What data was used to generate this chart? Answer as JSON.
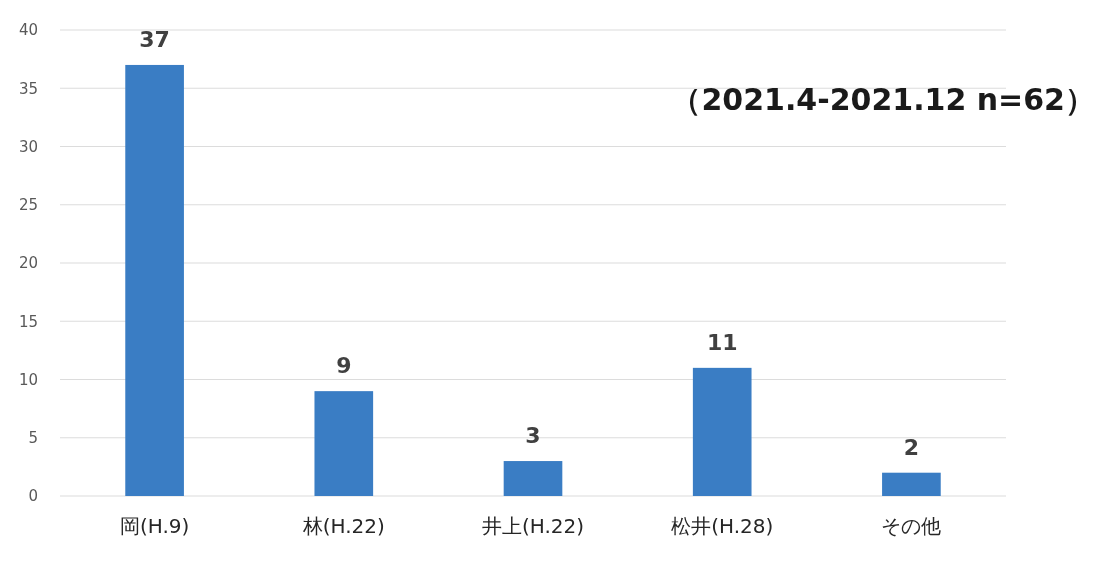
{
  "chart_data": {
    "type": "bar",
    "categories": [
      "岡(H.9)",
      "林(H.22)",
      "井上(H.22)",
      "松井(H.28)",
      "その他"
    ],
    "values": [
      37,
      9,
      3,
      11,
      2
    ],
    "color": "#3a7dc4",
    "ylim": [
      0,
      40
    ],
    "yticks": [
      0,
      5,
      10,
      15,
      20,
      25,
      30,
      35,
      40
    ],
    "grid": "y",
    "data_labels": true,
    "annotations": [
      "（2021.4-2021.12 n=62）"
    ]
  }
}
